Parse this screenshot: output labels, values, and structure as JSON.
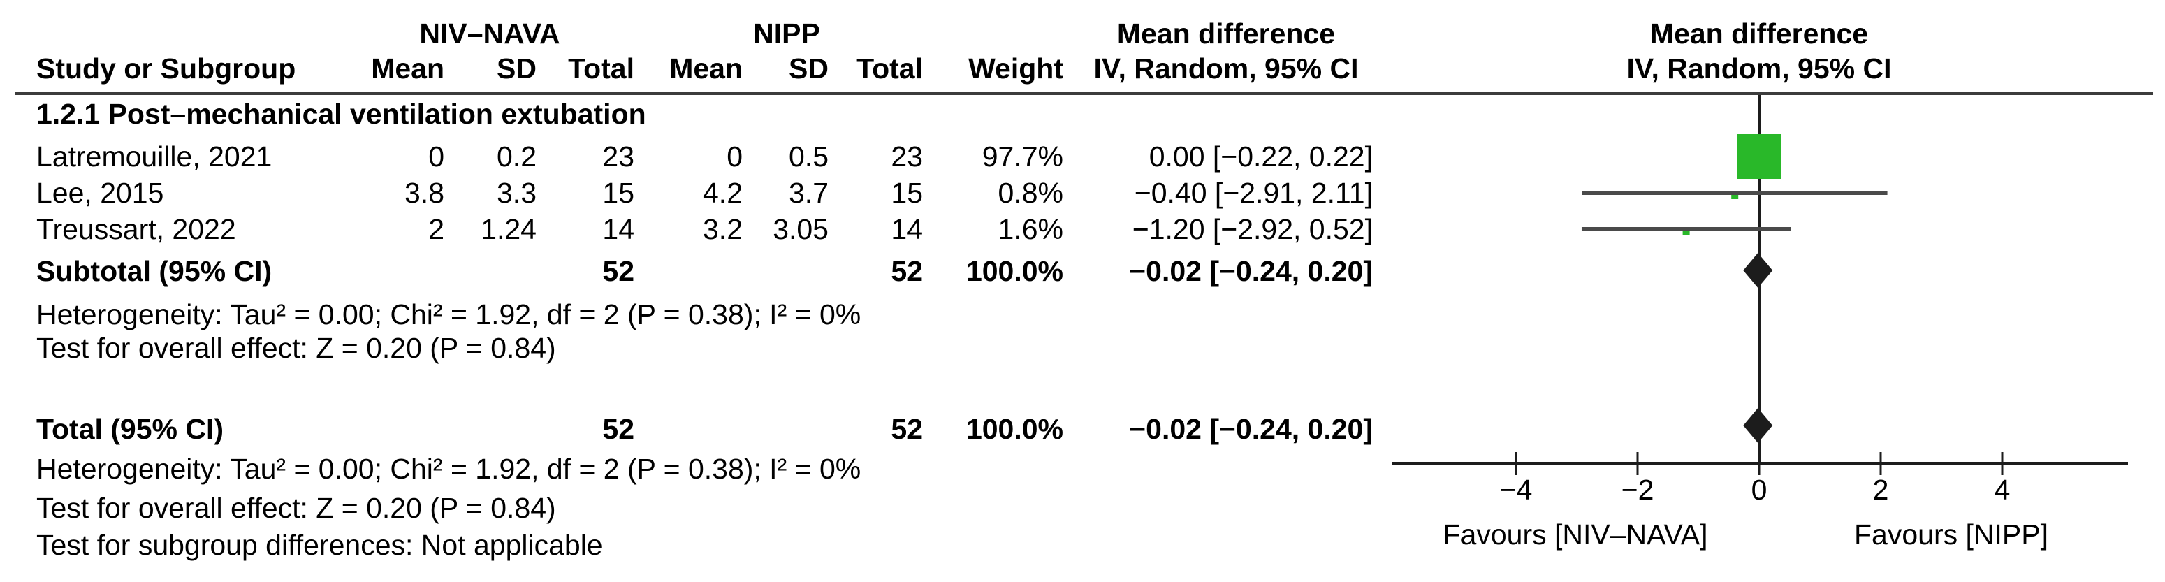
{
  "figure": {
    "background": "#ffffff",
    "colors": {
      "marker_green": "#29b829",
      "ci_line": "#4a4a4a",
      "ink": "#1c1c1c",
      "separator": "#3c3c3c"
    },
    "header": {
      "group1": "NIV–NAVA",
      "group2": "NIPP",
      "study_col": "Study or Subgroup",
      "mean": "Mean",
      "sd": "SD",
      "total": "Total",
      "weight": "Weight",
      "effect_title": "Mean difference",
      "effect_subtitle": "IV, Random, 95% CI",
      "plot_title": "Mean difference",
      "plot_subtitle": "IV, Random, 95% CI"
    },
    "subgroup": {
      "title": "1.2.1 Post–mechanical ventilation extubation",
      "studies": [
        {
          "name": "Latremouille, 2021",
          "nava_mean": "0",
          "nava_sd": "0.2",
          "nava_total": "23",
          "nipp_mean": "0",
          "nipp_sd": "0.5",
          "nipp_total": "23",
          "weight": "97.7%",
          "ci_text": "0.00 [−0.22, 0.22]"
        },
        {
          "name": "Lee, 2015",
          "nava_mean": "3.8",
          "nava_sd": "3.3",
          "nava_total": "15",
          "nipp_mean": "4.2",
          "nipp_sd": "3.7",
          "nipp_total": "15",
          "weight": "0.8%",
          "ci_text": "−0.40 [−2.91, 2.11]"
        },
        {
          "name": "Treussart, 2022",
          "nava_mean": "2",
          "nava_sd": "1.24",
          "nava_total": "14",
          "nipp_mean": "3.2",
          "nipp_sd": "3.05",
          "nipp_total": "14",
          "weight": "1.6%",
          "ci_text": "−1.20 [−2.92, 0.52]"
        }
      ],
      "subtotal": {
        "label": "Subtotal (95% CI)",
        "nava_total": "52",
        "nipp_total": "52",
        "weight": "100.0%",
        "ci_text": "−0.02 [−0.24, 0.20]"
      },
      "heterogeneity": "Heterogeneity: Tau² = 0.00; Chi² = 1.92, df = 2 (P = 0.38); I² = 0%",
      "overall_effect": "Test for overall effect: Z = 0.20 (P = 0.84)"
    },
    "total": {
      "label": "Total (95% CI)",
      "nava_total": "52",
      "nipp_total": "52",
      "weight": "100.0%",
      "ci_text": "−0.02 [−0.24, 0.20]"
    },
    "footer": {
      "heterogeneity": "Heterogeneity: Tau² = 0.00; Chi² = 1.92, df = 2 (P = 0.38); I² = 0%",
      "overall_effect": "Test for overall effect: Z = 0.20 (P = 0.84)",
      "subgroup_diff": "Test for subgroup differences: Not applicable"
    },
    "axis": {
      "tick_labels": [
        "−4",
        "−2",
        "0",
        "2",
        "4"
      ],
      "favours_left": "Favours [NIV–NAVA]",
      "favours_right": "Favours [NIPP]"
    }
  },
  "chart_data": {
    "type": "forest",
    "title": "Mean difference",
    "subtitle": "IV, Random, 95% CI",
    "model": "IV, Random, 95% CI",
    "xlim": [
      -6,
      6
    ],
    "ticks": [
      -4,
      -2,
      0,
      2,
      4
    ],
    "xlabel_left": "Favours [NIV–NAVA]",
    "xlabel_right": "Favours [NIPP]",
    "rows": [
      {
        "label": "Latremouille, 2021",
        "md": 0.0,
        "ci": [
          -0.22,
          0.22
        ],
        "weight_pct": 97.7,
        "marker": "square"
      },
      {
        "label": "Lee, 2015",
        "md": -0.4,
        "ci": [
          -2.91,
          2.11
        ],
        "weight_pct": 0.8,
        "marker": "square"
      },
      {
        "label": "Treussart, 2022",
        "md": -1.2,
        "ci": [
          -2.92,
          0.52
        ],
        "weight_pct": 1.6,
        "marker": "square"
      },
      {
        "label": "Subtotal (95% CI)",
        "md": -0.02,
        "ci": [
          -0.24,
          0.2
        ],
        "weight_pct": 100.0,
        "marker": "diamond"
      },
      {
        "label": "Total (95% CI)",
        "md": -0.02,
        "ci": [
          -0.24,
          0.2
        ],
        "weight_pct": 100.0,
        "marker": "diamond"
      }
    ],
    "heterogeneity": {
      "tau2": 0.0,
      "chi2": 1.92,
      "df": 2,
      "p": 0.38,
      "i2_pct": 0
    },
    "overall_effect": {
      "z": 0.2,
      "p": 0.84
    }
  }
}
